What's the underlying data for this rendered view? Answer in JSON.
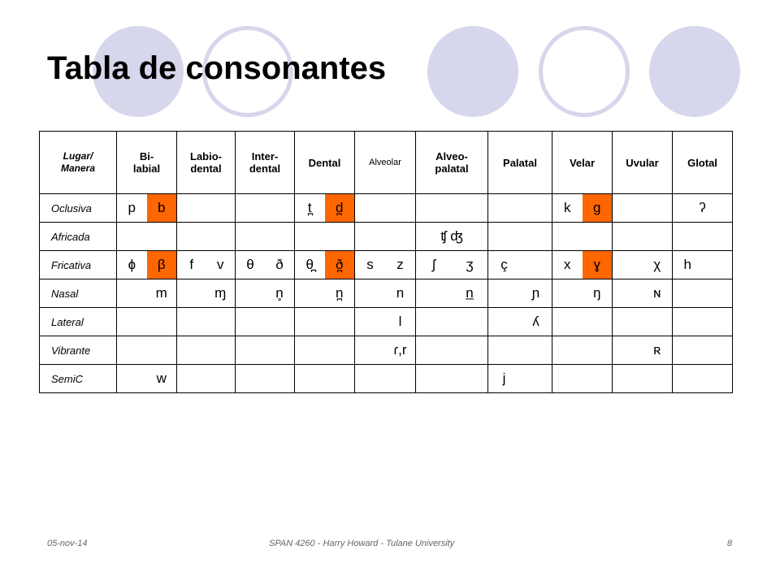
{
  "colors": {
    "circle": "#d6d6ec",
    "highlight": "#ff6600"
  },
  "slide": {
    "title": "Tabla de consonantes"
  },
  "table": {
    "header": [
      "Lugar/\nManera",
      "Bi-\nlabial",
      "Labio-\ndental",
      "Inter-\ndental",
      "Dental",
      "Alveolar",
      "Alveo-\npalatal",
      "Palatal",
      "Velar",
      "Uvular",
      "Glotal"
    ],
    "rows": [
      {
        "label": "Oclusiva",
        "cells": [
          {
            "l": "p",
            "r": "b",
            "rh": true
          },
          null,
          null,
          {
            "l": "t̪",
            "r": "d̪",
            "rh": true
          },
          null,
          null,
          null,
          {
            "l": "k",
            "r": "g",
            "rh": true
          },
          null,
          {
            "s": "ʔ"
          }
        ]
      },
      {
        "label": "Africada",
        "cells": [
          null,
          null,
          null,
          null,
          null,
          {
            "s": "ʧ  ʤ"
          },
          null,
          null,
          null,
          null
        ]
      },
      {
        "label": "Fricativa",
        "cells": [
          {
            "l": "ɸ",
            "r": "β",
            "rh": true
          },
          {
            "l": "f",
            "r": "v"
          },
          {
            "l": "θ",
            "r": "ð"
          },
          {
            "l": "θ̪",
            "r": "ð̪",
            "rh": true
          },
          {
            "l": "s",
            "r": "z"
          },
          {
            "l": "ʃ",
            "r": "ʒ"
          },
          {
            "l": "ç",
            "r": ""
          },
          {
            "l": "x",
            "r": "ɣ",
            "rh": true
          },
          {
            "l": "",
            "r": "χ"
          },
          {
            "l": "h",
            "r": ""
          }
        ]
      },
      {
        "label": "Nasal",
        "cells": [
          {
            "l": "",
            "r": "m"
          },
          {
            "l": "",
            "r": "ɱ"
          },
          {
            "l": "",
            "r": "n̥"
          },
          {
            "l": "",
            "r": "n̪"
          },
          {
            "l": "",
            "r": "n"
          },
          {
            "l": "",
            "r": "n̲"
          },
          {
            "l": "",
            "r": "ɲ"
          },
          {
            "l": "",
            "r": "ŋ"
          },
          {
            "l": "",
            "r": "ɴ"
          },
          null
        ]
      },
      {
        "label": "Lateral",
        "cells": [
          null,
          null,
          null,
          null,
          {
            "l": "",
            "r": "l"
          },
          null,
          {
            "l": "",
            "r": "ʎ"
          },
          null,
          null,
          null
        ]
      },
      {
        "label": "Vibrante",
        "cells": [
          null,
          null,
          null,
          null,
          {
            "l": "",
            "r": "ɾ,r"
          },
          null,
          null,
          null,
          {
            "l": "",
            "r": "ʀ"
          },
          null
        ]
      },
      {
        "label": "SemiC",
        "cells": [
          {
            "l": "",
            "r": "w"
          },
          null,
          null,
          null,
          null,
          null,
          {
            "l": "j",
            "r": ""
          },
          null,
          null,
          null
        ]
      }
    ]
  },
  "footer": {
    "date": "05-nov-14",
    "center": "SPAN 4260 - Harry Howard - Tulane University",
    "page": "8"
  }
}
